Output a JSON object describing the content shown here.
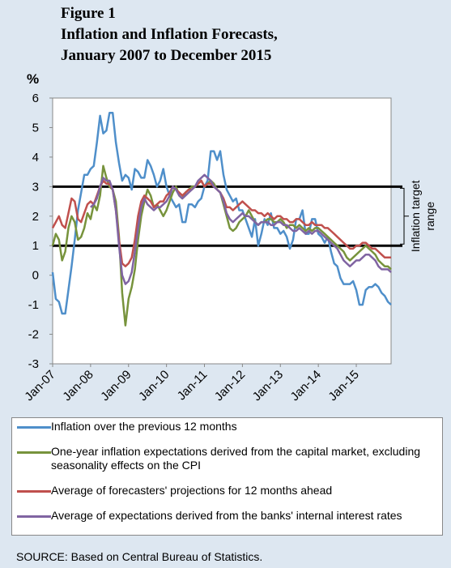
{
  "chart_data": {
    "type": "line",
    "figure_label": "Figure 1",
    "title_lines": [
      "Inflation and Inflation Forecasts,",
      "January 2007 to December 2015"
    ],
    "y_label": "%",
    "categories": [
      "Jan-07",
      null,
      null,
      null,
      null,
      null,
      null,
      null,
      null,
      null,
      null,
      null,
      "Jan-08",
      null,
      null,
      null,
      null,
      null,
      null,
      null,
      null,
      null,
      null,
      null,
      "Jan-09",
      null,
      null,
      null,
      null,
      null,
      null,
      null,
      null,
      null,
      null,
      null,
      "Jan-10",
      null,
      null,
      null,
      null,
      null,
      null,
      null,
      null,
      null,
      null,
      null,
      "Jan-11",
      null,
      null,
      null,
      null,
      null,
      null,
      null,
      null,
      null,
      null,
      null,
      "Jan-12",
      null,
      null,
      null,
      null,
      null,
      null,
      null,
      null,
      null,
      null,
      null,
      "Jan-13",
      null,
      null,
      null,
      null,
      null,
      null,
      null,
      null,
      null,
      null,
      null,
      "Jan-14",
      null,
      null,
      null,
      null,
      null,
      null,
      null,
      null,
      null,
      null,
      null,
      "Jan-15",
      null,
      null,
      null,
      null,
      null,
      null,
      null,
      null,
      null,
      null,
      null
    ],
    "series": [
      {
        "name": "Inflation over the previous 12 months",
        "color": "#4f8fca",
        "values": [
          0.1,
          -0.8,
          -0.9,
          -1.3,
          -1.3,
          -0.5,
          0.3,
          1.2,
          2.2,
          2.8,
          3.4,
          3.4,
          3.6,
          3.7,
          4.5,
          5.4,
          4.8,
          4.9,
          5.5,
          5.5,
          4.5,
          3.8,
          3.2,
          3.4,
          3.3,
          2.9,
          3.6,
          3.5,
          3.3,
          3.3,
          3.9,
          3.7,
          3.4,
          3.0,
          3.2,
          3.6,
          3.0,
          2.7,
          2.5,
          2.3,
          2.4,
          1.8,
          1.8,
          2.4,
          2.4,
          2.3,
          2.5,
          2.6,
          3.0,
          3.2,
          4.2,
          4.2,
          3.9,
          4.2,
          3.4,
          2.9,
          2.7,
          2.5,
          2.6,
          2.2,
          2.2,
          1.9,
          1.6,
          1.3,
          1.9,
          1.0,
          1.4,
          1.9,
          1.7,
          2.1,
          1.6,
          1.6,
          1.4,
          1.5,
          1.3,
          0.9,
          1.2,
          1.9,
          1.9,
          2.2,
          1.4,
          1.4,
          1.9,
          1.9,
          1.4,
          1.3,
          1.1,
          1.3,
          0.8,
          0.4,
          0.3,
          -0.1,
          -0.3,
          -0.3,
          -0.3,
          -0.2,
          -0.5,
          -1.0,
          -1.0,
          -0.5,
          -0.4,
          -0.4,
          -0.3,
          -0.4,
          -0.6,
          -0.7,
          -0.9,
          -1.0
        ]
      },
      {
        "name": "One-year inflation expectations derived from the capital market, excluding seasonality effects on the CPI",
        "color": "#77933c",
        "values": [
          1.0,
          1.4,
          1.2,
          0.5,
          0.8,
          1.6,
          2.0,
          1.8,
          1.2,
          1.3,
          1.6,
          2.1,
          1.9,
          2.4,
          2.2,
          2.7,
          3.7,
          3.3,
          3.0,
          2.9,
          2.5,
          1.3,
          -0.6,
          -1.7,
          -0.8,
          -0.4,
          0.2,
          1.2,
          2.0,
          2.5,
          2.9,
          2.7,
          2.3,
          2.4,
          2.2,
          2.0,
          2.2,
          2.5,
          2.8,
          3.0,
          2.7,
          2.6,
          2.8,
          2.9,
          3.0,
          3.0,
          3.1,
          3.2,
          3.0,
          3.1,
          3.2,
          3.1,
          2.9,
          2.8,
          2.4,
          2.0,
          1.6,
          1.5,
          1.6,
          1.8,
          1.9,
          2.0,
          2.2,
          2.0,
          1.8,
          1.7,
          1.8,
          1.8,
          1.9,
          1.9,
          1.8,
          1.8,
          1.9,
          1.8,
          1.6,
          1.7,
          1.7,
          1.6,
          1.7,
          1.6,
          1.5,
          1.6,
          1.5,
          1.6,
          1.6,
          1.5,
          1.4,
          1.3,
          1.2,
          1.1,
          1.0,
          0.9,
          0.8,
          0.6,
          0.5,
          0.6,
          0.7,
          0.8,
          0.9,
          1.0,
          0.9,
          0.8,
          0.7,
          0.5,
          0.4,
          0.3,
          0.3,
          0.2
        ]
      },
      {
        "name": "Average of forecasters' projections for 12 months ahead",
        "color": "#c0504d",
        "values": [
          1.6,
          1.8,
          2.0,
          1.7,
          1.6,
          2.1,
          2.6,
          2.5,
          1.9,
          1.8,
          2.1,
          2.4,
          2.5,
          2.4,
          2.7,
          3.0,
          3.2,
          3.1,
          3.1,
          2.9,
          2.2,
          1.2,
          0.4,
          0.3,
          0.4,
          0.6,
          1.2,
          2.0,
          2.5,
          2.7,
          2.6,
          2.5,
          2.3,
          2.4,
          2.5,
          2.5,
          2.7,
          2.8,
          3.0,
          2.9,
          2.8,
          2.7,
          2.8,
          2.9,
          2.9,
          3.0,
          3.1,
          3.2,
          3.0,
          3.1,
          3.1,
          3.0,
          2.9,
          2.8,
          2.6,
          2.3,
          2.3,
          2.2,
          2.3,
          2.4,
          2.5,
          2.4,
          2.3,
          2.2,
          2.2,
          2.1,
          2.1,
          2.0,
          2.1,
          2.0,
          1.9,
          2.0,
          2.0,
          1.9,
          1.9,
          1.8,
          1.8,
          1.9,
          1.9,
          1.8,
          1.7,
          1.7,
          1.8,
          1.7,
          1.7,
          1.7,
          1.6,
          1.6,
          1.5,
          1.4,
          1.3,
          1.2,
          1.1,
          1.0,
          0.9,
          0.9,
          1.0,
          1.0,
          1.1,
          1.1,
          1.0,
          0.9,
          0.9,
          0.8,
          0.7,
          0.6,
          0.6,
          0.6
        ]
      },
      {
        "name": "Average of expectations derived from the banks' internal interest rates",
        "color": "#8064a2",
        "values": [
          null,
          null,
          null,
          null,
          null,
          null,
          null,
          null,
          null,
          null,
          null,
          null,
          2.3,
          2.4,
          2.6,
          3.0,
          3.3,
          3.2,
          3.2,
          2.9,
          2.2,
          1.0,
          0.0,
          -0.3,
          -0.2,
          0.1,
          0.8,
          1.6,
          2.3,
          2.6,
          2.4,
          2.3,
          2.2,
          2.3,
          2.3,
          2.4,
          2.5,
          2.7,
          3.0,
          2.9,
          2.7,
          2.6,
          2.7,
          2.8,
          2.9,
          3.0,
          3.2,
          3.3,
          3.4,
          3.3,
          3.2,
          3.0,
          2.9,
          2.8,
          2.5,
          2.1,
          1.9,
          1.8,
          1.9,
          2.0,
          2.1,
          2.0,
          2.0,
          1.9,
          1.8,
          1.7,
          1.8,
          1.8,
          1.8,
          1.7,
          1.7,
          1.8,
          1.8,
          1.7,
          1.7,
          1.6,
          1.5,
          1.5,
          1.6,
          1.5,
          1.4,
          1.5,
          1.4,
          1.5,
          1.5,
          1.4,
          1.3,
          1.2,
          1.1,
          1.0,
          0.9,
          0.7,
          0.5,
          0.4,
          0.3,
          0.4,
          0.5,
          0.5,
          0.6,
          0.7,
          0.7,
          0.6,
          0.5,
          0.3,
          0.2,
          0.2,
          0.2,
          0.1
        ]
      }
    ],
    "ylim": [
      -3,
      6
    ],
    "yticks": [
      -3,
      -2,
      -1,
      0,
      1,
      2,
      3,
      4,
      5,
      6
    ],
    "reference_lines": [
      1,
      3
    ],
    "annotation_lines": [
      "Inflation target",
      "range"
    ],
    "source": "SOURCE: Based on Central Bureau of Statistics."
  }
}
